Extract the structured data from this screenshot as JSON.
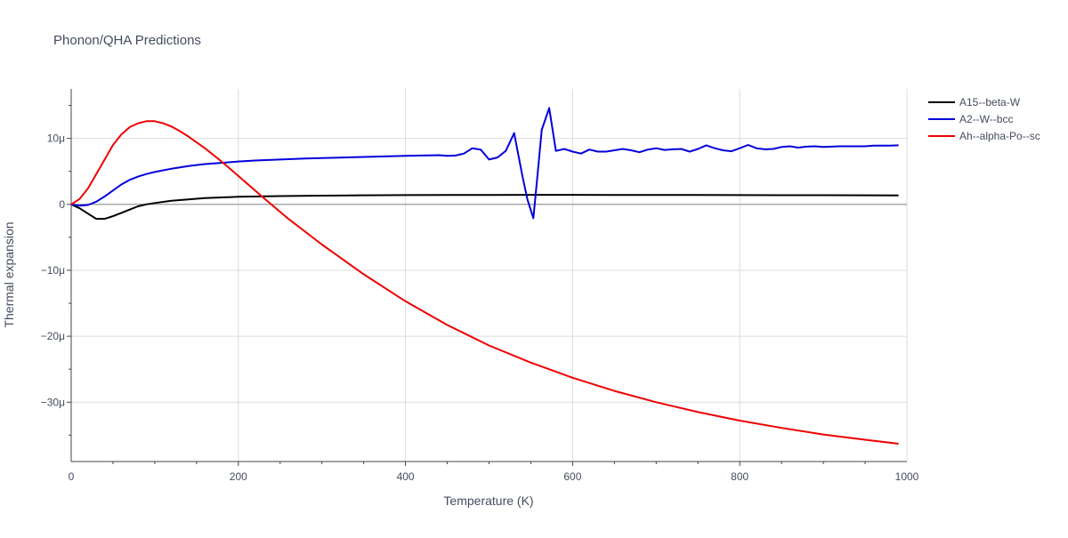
{
  "chart_data": {
    "type": "line",
    "title": "Phonon/QHA Predictions",
    "xlabel": "Temperature (K)",
    "ylabel": "Thermal expansion",
    "xlim": [
      0,
      1000
    ],
    "ylim": [
      -39,
      17.5
    ],
    "x_ticks": [
      0,
      200,
      400,
      600,
      800,
      1000
    ],
    "x_tick_labels": [
      "0",
      "200",
      "400",
      "600",
      "800",
      "1000"
    ],
    "y_ticks": [
      -30,
      -20,
      -10,
      0,
      10
    ],
    "y_tick_labels": [
      "−30μ",
      "−20μ",
      "−10μ",
      "0",
      "10μ"
    ],
    "y_unit_scale": "1e-6",
    "grid": true,
    "legend_position": "top-right",
    "series": [
      {
        "name": "A15--beta-W",
        "color": "#000000",
        "x": [
          0,
          10,
          20,
          30,
          40,
          50,
          60,
          70,
          80,
          90,
          100,
          120,
          140,
          160,
          180,
          200,
          250,
          300,
          350,
          400,
          450,
          500,
          550,
          600,
          650,
          700,
          750,
          800,
          850,
          900,
          950,
          990
        ],
        "y": [
          0,
          -0.6,
          -1.4,
          -2.2,
          -2.2,
          -1.8,
          -1.3,
          -0.8,
          -0.3,
          0.0,
          0.2,
          0.55,
          0.75,
          0.95,
          1.05,
          1.15,
          1.25,
          1.32,
          1.37,
          1.4,
          1.42,
          1.43,
          1.44,
          1.44,
          1.43,
          1.42,
          1.41,
          1.4,
          1.39,
          1.38,
          1.37,
          1.36
        ]
      },
      {
        "name": "A2--W--bcc",
        "color": "#0000dd",
        "x": [
          0,
          10,
          20,
          30,
          40,
          50,
          60,
          70,
          80,
          90,
          100,
          120,
          140,
          160,
          180,
          200,
          220,
          250,
          280,
          310,
          340,
          370,
          400,
          420,
          440,
          450,
          460,
          470,
          480,
          490,
          500,
          510,
          520,
          530,
          540,
          546,
          553,
          558,
          563,
          572,
          580,
          590,
          600,
          610,
          620,
          630,
          640,
          650,
          660,
          670,
          680,
          690,
          700,
          710,
          720,
          730,
          740,
          750,
          760,
          770,
          780,
          790,
          800,
          810,
          820,
          830,
          840,
          850,
          860,
          870,
          880,
          890,
          900,
          910,
          920,
          930,
          940,
          950,
          960,
          970,
          980,
          990
        ],
        "y": [
          0,
          -0.2,
          -0.1,
          0.4,
          1.2,
          2.1,
          3.0,
          3.7,
          4.2,
          4.6,
          4.9,
          5.4,
          5.8,
          6.1,
          6.3,
          6.5,
          6.65,
          6.8,
          6.95,
          7.05,
          7.15,
          7.25,
          7.35,
          7.4,
          7.45,
          7.35,
          7.4,
          7.7,
          8.5,
          8.3,
          6.8,
          7.1,
          8.1,
          10.8,
          4.2,
          0.7,
          -2.1,
          4.5,
          11.3,
          14.6,
          8.1,
          8.4,
          8.0,
          7.7,
          8.3,
          8.0,
          8.0,
          8.2,
          8.4,
          8.2,
          7.9,
          8.3,
          8.5,
          8.25,
          8.35,
          8.4,
          8.0,
          8.4,
          8.95,
          8.5,
          8.2,
          8.05,
          8.5,
          9.0,
          8.5,
          8.35,
          8.4,
          8.7,
          8.8,
          8.6,
          8.75,
          8.8,
          8.7,
          8.75,
          8.8,
          8.8,
          8.8,
          8.8,
          8.9,
          8.9,
          8.9,
          8.95
        ]
      },
      {
        "name": "Ah--alpha-Po--sc",
        "color": "#ee0000",
        "x": [
          0,
          10,
          20,
          30,
          40,
          50,
          60,
          70,
          80,
          90,
          100,
          110,
          120,
          130,
          140,
          160,
          180,
          200,
          230,
          260,
          300,
          350,
          400,
          450,
          500,
          550,
          600,
          650,
          700,
          750,
          800,
          850,
          900,
          950,
          990
        ],
        "y": [
          0,
          0.8,
          2.4,
          4.6,
          6.8,
          9.0,
          10.6,
          11.7,
          12.3,
          12.6,
          12.6,
          12.3,
          11.8,
          11.1,
          10.3,
          8.5,
          6.5,
          4.3,
          1.0,
          -2.2,
          -6.1,
          -10.6,
          -14.7,
          -18.3,
          -21.4,
          -24.0,
          -26.3,
          -28.3,
          -30.0,
          -31.5,
          -32.8,
          -33.9,
          -34.9,
          -35.7,
          -36.3
        ]
      }
    ]
  }
}
